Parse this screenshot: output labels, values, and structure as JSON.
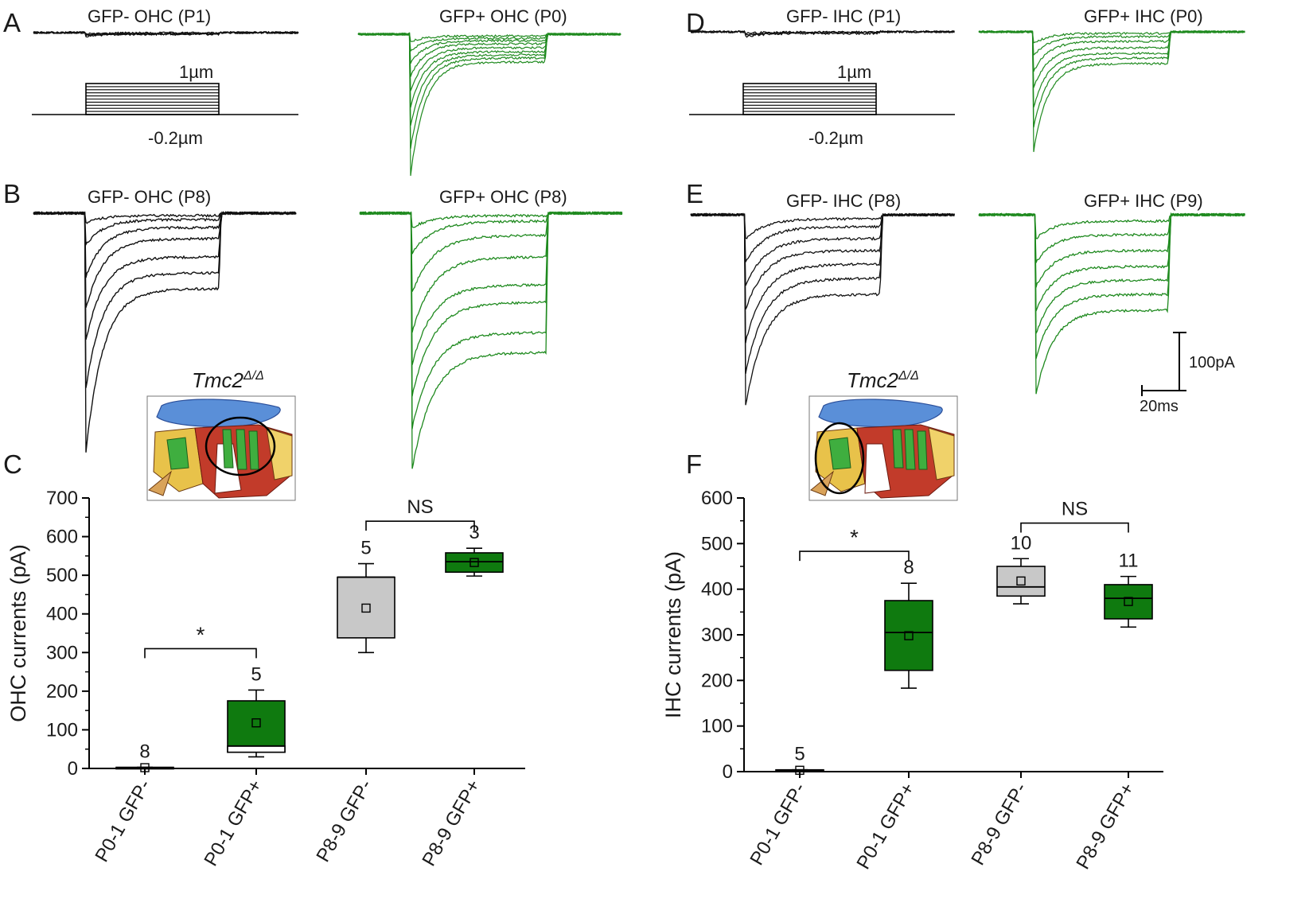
{
  "figure": {
    "panels": {
      "A": {
        "letter": "A",
        "left_title": "GFP-  OHC (P1)",
        "right_title": "GFP+  OHC (P0)"
      },
      "B": {
        "letter": "B",
        "left_title": "GFP-  OHC (P8)",
        "right_title": "GFP+  OHC (P8)"
      },
      "C": {
        "letter": "C"
      },
      "D": {
        "letter": "D",
        "left_title": "GFP-  IHC (P1)",
        "right_title": "GFP+  IHC (P0)"
      },
      "E": {
        "letter": "E",
        "left_title": "GFP-  IHC (P8)",
        "right_title": "GFP+  IHC (P9)"
      },
      "F": {
        "letter": "F"
      }
    },
    "stimulus": {
      "max_label": "1µm",
      "min_label": "-0.2µm"
    },
    "scale_bar": {
      "current": "100pA",
      "time": "20ms"
    },
    "inset": {
      "gene": "Tmc2",
      "superscript": "Δ/Δ"
    },
    "colors": {
      "gfp_neg": "#111111",
      "gfp_pos": "#1f8a1f",
      "box_neg": "#c8c8c8",
      "box_pos": "#0f7a0f"
    }
  },
  "chart_data": [
    {
      "type": "box",
      "panel": "C",
      "ylabel": "OHC currents (pA)",
      "ylim": [
        0,
        700
      ],
      "yticks": [
        "0",
        "100",
        "200",
        "300",
        "400",
        "500",
        "600",
        "700"
      ],
      "categories": [
        "P0-1 GFP-",
        "P0-1 GFP+",
        "P8-9 GFP-",
        "P8-9 GFP+"
      ],
      "n": [
        "8",
        "5",
        "5",
        "3"
      ],
      "boxes": [
        {
          "q1": 0,
          "median": 2,
          "q3": 3,
          "mean": 2,
          "whisker_low": 0,
          "whisker_high": 3
        },
        {
          "q1": 42,
          "median": 58,
          "q3": 175,
          "mean": 118,
          "whisker_low": 30,
          "whisker_high": 203
        },
        {
          "q1": 338,
          "median": 495,
          "q3": 495,
          "mean": 415,
          "whisker_low": 300,
          "whisker_high": 530
        },
        {
          "q1": 508,
          "median": 535,
          "q3": 558,
          "mean": 533,
          "whisker_low": 498,
          "whisker_high": 570
        }
      ],
      "comparisons": [
        {
          "from": 0,
          "to": 1,
          "label": "*",
          "level": 310
        },
        {
          "from": 2,
          "to": 3,
          "label": "NS",
          "level": 640
        }
      ]
    },
    {
      "type": "box",
      "panel": "F",
      "ylabel": "IHC currents (pA)",
      "ylim": [
        0,
        600
      ],
      "yticks": [
        "0",
        "100",
        "200",
        "300",
        "400",
        "500",
        "600"
      ],
      "categories": [
        "P0-1 GFP-",
        "P0-1 GFP+",
        "P8-9 GFP-",
        "P8-9 GFP+"
      ],
      "n": [
        "5",
        "8",
        "10",
        "11"
      ],
      "boxes": [
        {
          "q1": 0,
          "median": 3,
          "q3": 4,
          "mean": 3,
          "whisker_low": 0,
          "whisker_high": 4
        },
        {
          "q1": 222,
          "median": 305,
          "q3": 375,
          "mean": 298,
          "whisker_low": 183,
          "whisker_high": 413
        },
        {
          "q1": 385,
          "median": 405,
          "q3": 450,
          "mean": 418,
          "whisker_low": 368,
          "whisker_high": 467
        },
        {
          "q1": 335,
          "median": 380,
          "q3": 410,
          "mean": 373,
          "whisker_low": 317,
          "whisker_high": 428
        }
      ],
      "comparisons": [
        {
          "from": 0,
          "to": 1,
          "label": "*",
          "level": 483
        },
        {
          "from": 2,
          "to": 3,
          "label": "NS",
          "level": 545
        }
      ]
    }
  ]
}
